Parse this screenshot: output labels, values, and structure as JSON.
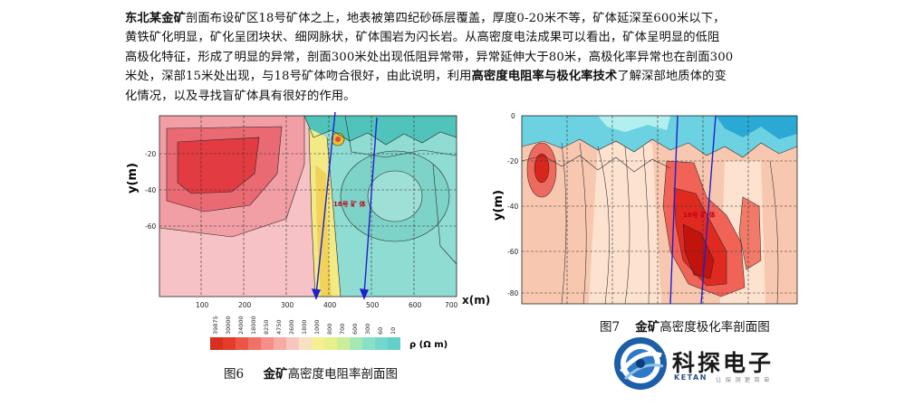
{
  "paragraph": {
    "lines": [
      {
        "lead": "东北某金矿",
        "text": "剖面布设矿区18号矿体之上，地表被第四纪砂砾层覆盖，厚度0-20米不等，矿体延深至600米以下，"
      },
      {
        "text": "黄铁矿化明显，矿化呈团块状、细网脉状，矿体围岩为闪长岩。从高密度电法成果可以看出，矿体呈明显的低阻"
      },
      {
        "text": "高极化特征，形成了明显的异常，剖面300米处出现低阻异常带，异常延伸大于80米，高极化率异常也在剖面300"
      },
      {
        "pre": "米处，深部15米处出现，与18号矿体吻合很好，由此说明，利用",
        "emph": "高密度电阻率与极化率技术",
        "post": "了解深部地质体的变"
      },
      {
        "text": "化情况，以及寻找盲矿体具有很好的作用。"
      }
    ]
  },
  "fig6": {
    "y_axis_label": "y(m)",
    "x_axis_label": "x(m)",
    "y_ticks": [
      "-20",
      "-40",
      "-60"
    ],
    "x_ticks": [
      "100",
      "200",
      "300",
      "400",
      "500",
      "600",
      "700"
    ],
    "annotation": "18号 矿 体",
    "legend_values": [
      "39875",
      "30000",
      "24000",
      "18000",
      "8250",
      "4750",
      "2600",
      "1800",
      "1000",
      "800",
      "700",
      "600",
      "300",
      "60",
      "10"
    ],
    "legend_unit": "ρ (Ω m)",
    "caption_num": "图6",
    "caption_bold": "金矿",
    "caption_rest": "高密度电阻率剖面图"
  },
  "fig7": {
    "y_axis_label": "y(m)",
    "y_ticks": [
      "0",
      "-20",
      "-40",
      "-60",
      "-80"
    ],
    "annotation": "18号 矿 体",
    "caption_num": "图7",
    "caption_bold": "金矿",
    "caption_rest": "高密度极化率剖面图"
  },
  "logo": {
    "name": "科探电子",
    "sub": "KETAN",
    "slogan": "让 探 测 更 简 单"
  }
}
